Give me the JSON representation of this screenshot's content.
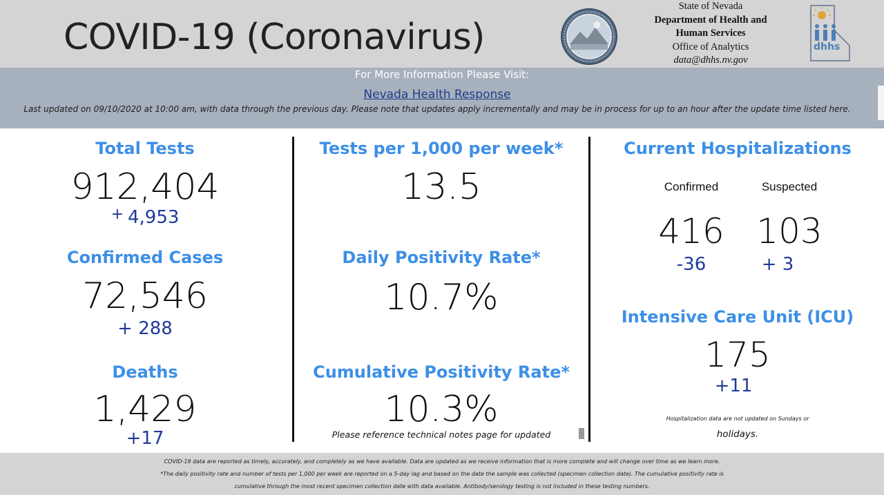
{
  "header": {
    "title": "COVID-19 (Coronavirus)",
    "org_line1": "State of Nevada",
    "org_line2": "Department of Health and",
    "org_line3": "Human Services",
    "org_line4": "Office of Analytics",
    "org_email": "data@dhhs.nv.gov",
    "seal_icon": "nevada-state-seal-icon",
    "logo_icon": "dhhs-logo-icon"
  },
  "info": {
    "more_info": "For More Information Please Visit:",
    "link_text": "Nevada Health Response",
    "updated_text": "Last updated on 09/10/2020 at 10:00 am, with data through the previous day.  Please note that updates apply incrementally and may be in process for up to an hour after the update time listed here."
  },
  "col1": {
    "tests_label": "Total Tests",
    "tests_value": "912,404",
    "tests_delta_sign": "+",
    "tests_delta": "4,953",
    "cases_label": "Confirmed Cases",
    "cases_value": "72,546",
    "cases_delta": "+ 288",
    "deaths_label": "Deaths",
    "deaths_value": "1,429",
    "deaths_delta": "+17"
  },
  "col2": {
    "tpk_label": "Tests per 1,000 per week*",
    "tpk_value": "13.5",
    "dpr_label": "Daily Positivity Rate*",
    "dpr_value": "10.7%",
    "cpr_label": "Cumulative Positivity Rate*",
    "cpr_value": "10.3%",
    "note": "Please reference technical notes page for updated"
  },
  "col3": {
    "hosp_label": "Current Hospitalizations",
    "confirmed_label": "Confirmed",
    "suspected_label": "Suspected",
    "confirmed_value": "416",
    "suspected_value": "103",
    "confirmed_delta": "-36",
    "suspected_delta": "+ 3",
    "icu_label": "Intensive Care Unit (ICU)",
    "icu_value": "175",
    "icu_delta": "+11",
    "hosp_note_line1": "Hospitalization data are not updated on Sundays or",
    "hosp_note_line2": "holidays."
  },
  "footer": {
    "line1": "COVID-19 data are reported as timely, accurately, and completely as we have available.  Data are updated as we receive information that is more complete and will change over time as we learn more.",
    "line2": "*The daily positivity rate and number of tests per 1,000 per week are reported on a 5-day lag and based on the date the sample was collected (specimen collection date).  The cumulative positivity rate is",
    "line3": "cumulative through the most recent specimen collection date with data available.  Antibody/serology testing is not included in these testing numbers."
  }
}
